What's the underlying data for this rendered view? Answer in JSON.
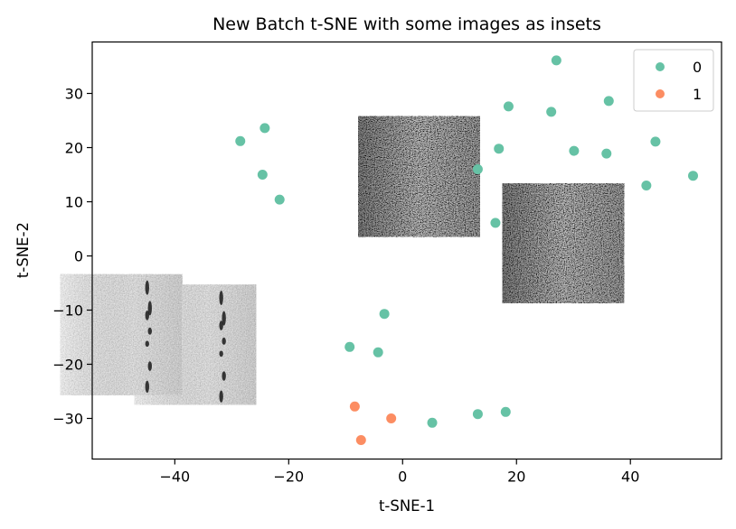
{
  "chart_data": {
    "type": "scatter",
    "title": "New Batch t-SNE with some images as insets",
    "xlabel": "t-SNE-1",
    "ylabel": "t-SNE-2",
    "xlim": [
      -54.5,
      56
    ],
    "ylim": [
      -37.5,
      39.5
    ],
    "xticks": [
      -40,
      -20,
      0,
      20,
      40
    ],
    "yticks": [
      -30,
      -20,
      -10,
      0,
      10,
      20,
      30
    ],
    "xtick_labels": [
      "−40",
      "−20",
      "0",
      "20",
      "40"
    ],
    "ytick_labels": [
      "−30",
      "−20",
      "−10",
      "0",
      "10",
      "20",
      "30"
    ],
    "grid": false,
    "legend": {
      "placement": "top-right",
      "entries": [
        "0",
        "1"
      ]
    },
    "series": [
      {
        "name": "0",
        "color": "#66c2a5",
        "points": [
          {
            "x": -28.5,
            "y": 21.2
          },
          {
            "x": -24.2,
            "y": 23.6
          },
          {
            "x": -24.6,
            "y": 15.0
          },
          {
            "x": -21.6,
            "y": 10.4
          },
          {
            "x": 13.2,
            "y": 16.0
          },
          {
            "x": 16.9,
            "y": 19.8
          },
          {
            "x": 16.3,
            "y": 6.1
          },
          {
            "x": 18.6,
            "y": 27.6
          },
          {
            "x": 26.1,
            "y": 26.6
          },
          {
            "x": 27.0,
            "y": 36.1
          },
          {
            "x": 30.1,
            "y": 19.4
          },
          {
            "x": 35.8,
            "y": 18.9
          },
          {
            "x": 36.2,
            "y": 28.6
          },
          {
            "x": 42.8,
            "y": 13.0
          },
          {
            "x": 44.4,
            "y": 21.1
          },
          {
            "x": 51.0,
            "y": 14.8
          },
          {
            "x": -3.2,
            "y": -10.7
          },
          {
            "x": -9.3,
            "y": -16.8
          },
          {
            "x": -4.3,
            "y": -17.8
          },
          {
            "x": 5.2,
            "y": -30.8
          },
          {
            "x": 13.2,
            "y": -29.2
          },
          {
            "x": 18.1,
            "y": -28.8
          }
        ]
      },
      {
        "name": "1",
        "color": "#fc8d62",
        "points": [
          {
            "x": -8.4,
            "y": -27.8
          },
          {
            "x": -2.0,
            "y": -30.0
          },
          {
            "x": -7.3,
            "y": -34.0
          }
        ]
      }
    ],
    "insets": [
      {
        "name": "inset-center-noise",
        "style": "dark-noise",
        "x0": -7.8,
        "x1": 13.6,
        "y0": 3.5,
        "y1": 25.8
      },
      {
        "name": "inset-right-noise",
        "style": "dark-noise",
        "x0": 17.5,
        "x1": 38.9,
        "y0": -8.7,
        "y1": 13.4
      },
      {
        "name": "inset-left-streak-back",
        "style": "light-streak",
        "x0": -47.1,
        "x1": -25.7,
        "y0": -27.5,
        "y1": -5.3
      },
      {
        "name": "inset-left-streak-front",
        "style": "light-streak",
        "x0": -60.1,
        "x1": -38.7,
        "y0": -25.7,
        "y1": -3.4
      }
    ]
  }
}
